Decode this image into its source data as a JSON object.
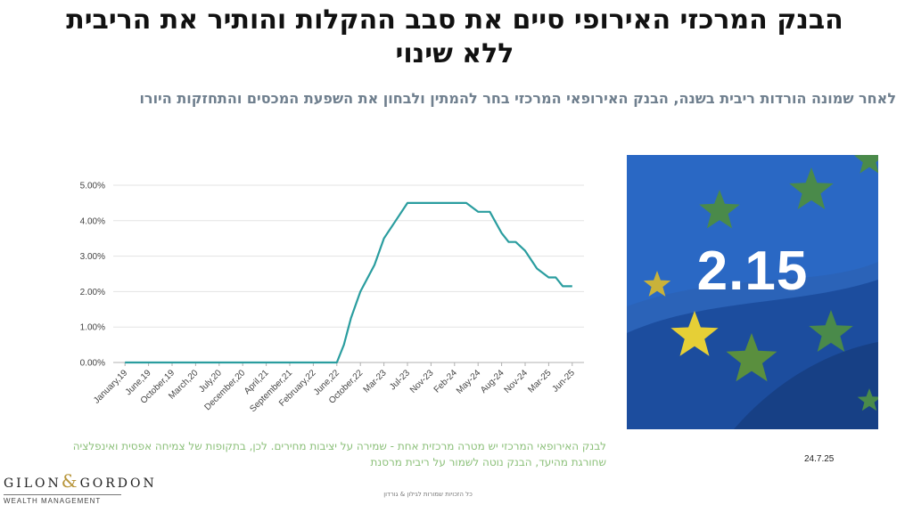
{
  "title": "הבנק המרכזי האירופי סיים את סבב ההקלות והותיר את הריבית ללא שינוי",
  "subtitle": "לאחר שמונה הורדות ריבית בשנה, הבנק האירופאי המרכזי בחר להמתין ולבחון את השפעת המכסים והתחזקות היורו",
  "note": "לבנק האירופאי המרכזי יש מטרה מרכזית אחת - שמירה על יציבות מחירים. לכן, בתקופות של צמיחה אפסית ואינפלציה שחורגת מהיעד, הבנק נוטה לשמור על ריבית מרסנת",
  "rate_value": "2.15",
  "date": "24.7.25",
  "logo": {
    "left": "GILON",
    "amp": "&",
    "right": "GORDON",
    "sub": "WEALTH MANAGEMENT"
  },
  "footer": "כל הזכויות שמורות לגילון & גורדון",
  "colors": {
    "line": "#2a9d9f",
    "subtitle": "#6f7f8e",
    "note": "#8cc07a",
    "flag": "#1f5bb5",
    "star": "#f3d43b"
  },
  "chart_data": {
    "type": "line",
    "categories": [
      "January,19",
      "June,19",
      "October,19",
      "March,20",
      "July,20",
      "December,20",
      "April,21",
      "September,21",
      "February,22",
      "June,22",
      "October,22",
      "Mar-23",
      "Jul-23",
      "Nov-23",
      "Feb-24",
      "May-24",
      "Aug-24",
      "Nov-24",
      "Mar-25",
      "Jun-25"
    ],
    "y_ticks": [
      "0.00%",
      "1.00%",
      "2.00%",
      "3.00%",
      "4.00%",
      "5.00%"
    ],
    "ylim": [
      0,
      5
    ],
    "grid": true,
    "x": [
      0,
      1,
      2,
      3,
      4,
      5,
      6,
      7,
      8,
      9,
      9.3,
      9.6,
      10,
      10.6,
      11,
      11.5,
      12,
      12.5,
      13,
      13.5,
      14,
      14.5,
      15,
      15.5,
      16,
      16.3,
      16.6,
      17,
      17.5,
      18,
      18.3,
      18.6,
      19
    ],
    "values": [
      0,
      0,
      0,
      0,
      0,
      0,
      0,
      0,
      0,
      0,
      0.5,
      1.25,
      2.0,
      2.75,
      3.5,
      4.0,
      4.5,
      4.5,
      4.5,
      4.5,
      4.5,
      4.5,
      4.25,
      4.25,
      3.65,
      3.4,
      3.4,
      3.15,
      2.65,
      2.4,
      2.4,
      2.15,
      2.15
    ]
  }
}
